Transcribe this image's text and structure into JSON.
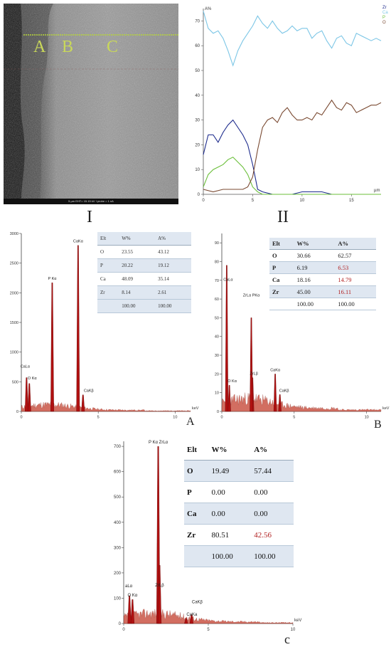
{
  "figure": {
    "panel_I_label": "I",
    "panel_II_label": "II",
    "panel_A_label": "A",
    "panel_B_label": "B",
    "panel_C_label": "c"
  },
  "sem_image": {
    "zone_labels": [
      "A",
      "B",
      "C"
    ],
    "info_bar": "5 µm   EHT= 15.15 kV   I probe = 1 nA"
  },
  "colors": {
    "Zr": "#1c2a8c",
    "Ca": "#7cc6e6",
    "P": "#6bbf3a",
    "O": "#7a4a32",
    "spectrum": "#b01010",
    "table_shade": "#dfe7f1"
  },
  "line_profile": {
    "y_title": "A%",
    "x_unit": "µm",
    "legend": [
      "Zr",
      "Ca",
      "P",
      "O"
    ],
    "y_ticks": [
      0,
      10,
      20,
      30,
      40,
      50,
      60,
      70
    ],
    "x_ticks": [
      0,
      5,
      10,
      15
    ]
  },
  "chart_data": [
    {
      "type": "line",
      "xlabel": "µm",
      "ylabel": "A%",
      "xlim": [
        0,
        18
      ],
      "ylim": [
        0,
        75
      ],
      "series": [
        {
          "name": "Zr",
          "x": [
            0,
            0.5,
            1,
            1.5,
            2,
            2.5,
            3,
            3.5,
            4,
            4.5,
            5,
            5.5,
            6,
            7,
            8,
            9,
            10,
            11,
            12,
            13,
            14,
            15,
            16,
            17,
            18
          ],
          "values": [
            16,
            24,
            24,
            21,
            25,
            28,
            30,
            27,
            24,
            20,
            12,
            2,
            1,
            0,
            0,
            0,
            1,
            1,
            1,
            0,
            0,
            0,
            0,
            0,
            0
          ]
        },
        {
          "name": "Ca",
          "x": [
            0,
            0.5,
            1,
            1.5,
            2,
            2.5,
            3,
            3.5,
            4,
            4.5,
            5,
            5.5,
            6,
            6.5,
            7,
            7.5,
            8,
            8.5,
            9,
            9.5,
            10,
            10.5,
            11,
            11.5,
            12,
            12.5,
            13,
            13.5,
            14,
            14.5,
            15,
            15.5,
            16,
            16.5,
            17,
            17.5,
            18
          ],
          "values": [
            74,
            67,
            65,
            66,
            63,
            58,
            52,
            58,
            62,
            65,
            68,
            72,
            69,
            67,
            70,
            67,
            65,
            66,
            68,
            66,
            67,
            67,
            63,
            65,
            66,
            62,
            59,
            63,
            64,
            61,
            60,
            65,
            64,
            63,
            62,
            63,
            62
          ]
        },
        {
          "name": "P",
          "x": [
            0,
            0.5,
            1,
            1.5,
            2,
            2.5,
            3,
            3.5,
            4,
            4.5,
            5,
            5.5,
            6,
            7,
            8,
            9,
            10,
            11,
            12,
            13,
            14,
            15,
            16,
            17,
            18
          ],
          "values": [
            3,
            8,
            10,
            11,
            12,
            14,
            15,
            13,
            11,
            8,
            3,
            1,
            0,
            0,
            0,
            0,
            0,
            0,
            0,
            0,
            0,
            0,
            0,
            0,
            0
          ]
        },
        {
          "name": "O",
          "x": [
            0,
            1,
            2,
            3,
            4,
            4.5,
            5,
            5.5,
            6,
            6.5,
            7,
            7.5,
            8,
            8.5,
            9,
            9.5,
            10,
            10.5,
            11,
            11.5,
            12,
            12.5,
            13,
            13.5,
            14,
            14.5,
            15,
            15.5,
            16,
            16.5,
            17,
            17.5,
            18
          ],
          "values": [
            2,
            1,
            2,
            2,
            2,
            3,
            7,
            18,
            27,
            30,
            31,
            29,
            33,
            35,
            32,
            30,
            30,
            31,
            30,
            33,
            32,
            35,
            38,
            35,
            34,
            37,
            36,
            33,
            34,
            35,
            36,
            36,
            37
          ]
        }
      ]
    },
    {
      "type": "bar",
      "title": "A",
      "xlabel": "keV",
      "xlim": [
        0,
        11
      ],
      "ylim": [
        0,
        3000
      ],
      "y_ticks": [
        0,
        500,
        1000,
        1500,
        2000,
        2500,
        3000
      ],
      "x_ticks": [
        0,
        5,
        10
      ],
      "peaks": [
        {
          "label": "CaLα",
          "energy": 0.34,
          "counts": 570
        },
        {
          "label": "O Kα",
          "energy": 0.52,
          "counts": 470
        },
        {
          "label": "P Kα",
          "energy": 2.01,
          "counts": 2170
        },
        {
          "label": "CaKα",
          "energy": 3.69,
          "counts": 2800
        },
        {
          "label": "CaKβ",
          "energy": 4.01,
          "counts": 280
        }
      ],
      "table": {
        "headers": [
          "Elt",
          "W%",
          "A%"
        ],
        "rows": [
          [
            "O",
            "23.55",
            "43.12"
          ],
          [
            "P",
            "20.22",
            "19.12"
          ],
          [
            "Ca",
            "48.09",
            "35.14"
          ],
          [
            "Zr",
            "8.14",
            "2.61"
          ],
          [
            "",
            "100.00",
            "100.00"
          ]
        ]
      }
    },
    {
      "type": "bar",
      "title": "B",
      "xlabel": "keV",
      "xlim": [
        0,
        11
      ],
      "ylim": [
        0,
        95
      ],
      "y_ticks": [
        0,
        10,
        20,
        30,
        40,
        50,
        60,
        70,
        80,
        90
      ],
      "x_ticks": [
        0,
        5,
        10
      ],
      "peaks": [
        {
          "label": "CaLα",
          "energy": 0.34,
          "counts": 78
        },
        {
          "label": "O Kα",
          "energy": 0.52,
          "counts": 14
        },
        {
          "label": "ZrLβ",
          "energy": 2.12,
          "counts": 18
        },
        {
          "label": "ZrLα PKα",
          "energy": 2.04,
          "counts": 50
        },
        {
          "label": "CaKα",
          "energy": 3.69,
          "counts": 20
        },
        {
          "label": "CaKβ",
          "energy": 4.01,
          "counts": 9
        }
      ],
      "table": {
        "headers": [
          "Elt",
          "W%",
          "A%"
        ],
        "rows": [
          [
            "O",
            "30.66",
            "62.57"
          ],
          [
            "P",
            "6.19",
            "6.53"
          ],
          [
            "Ca",
            "18.16",
            "14.79"
          ],
          [
            "Zr",
            "45.00",
            "16.11"
          ],
          [
            "",
            "100.00",
            "100.00"
          ]
        ]
      }
    },
    {
      "type": "bar",
      "title": "c",
      "xlabel": "keV",
      "xlim": [
        0,
        10
      ],
      "ylim": [
        0,
        720
      ],
      "y_ticks": [
        0,
        100,
        200,
        300,
        400,
        500,
        600,
        700
      ],
      "x_ticks": [
        0,
        5,
        10
      ],
      "peaks": [
        {
          "label": "aLα",
          "energy": 0.34,
          "counts": 110
        },
        {
          "label": "O Kα",
          "energy": 0.52,
          "counts": 95
        },
        {
          "label": "P Kα ZrLα",
          "energy": 2.04,
          "counts": 700
        },
        {
          "label": "ZrLβ",
          "energy": 2.12,
          "counts": 230
        },
        {
          "label": "CaKβ",
          "energy": 4.01,
          "counts": 35
        },
        {
          "label": "CaKa",
          "energy": 3.69,
          "counts": 20
        }
      ],
      "table": {
        "headers": [
          "Elt",
          "W%",
          "A%"
        ],
        "rows": [
          [
            "O",
            "19.49",
            "57.44"
          ],
          [
            "P",
            "0.00",
            "0.00"
          ],
          [
            "Ca",
            "0.00",
            "0.00"
          ],
          [
            "Zr",
            "80.51",
            "42.56"
          ],
          [
            "",
            "100.00",
            "100.00"
          ]
        ]
      }
    }
  ]
}
